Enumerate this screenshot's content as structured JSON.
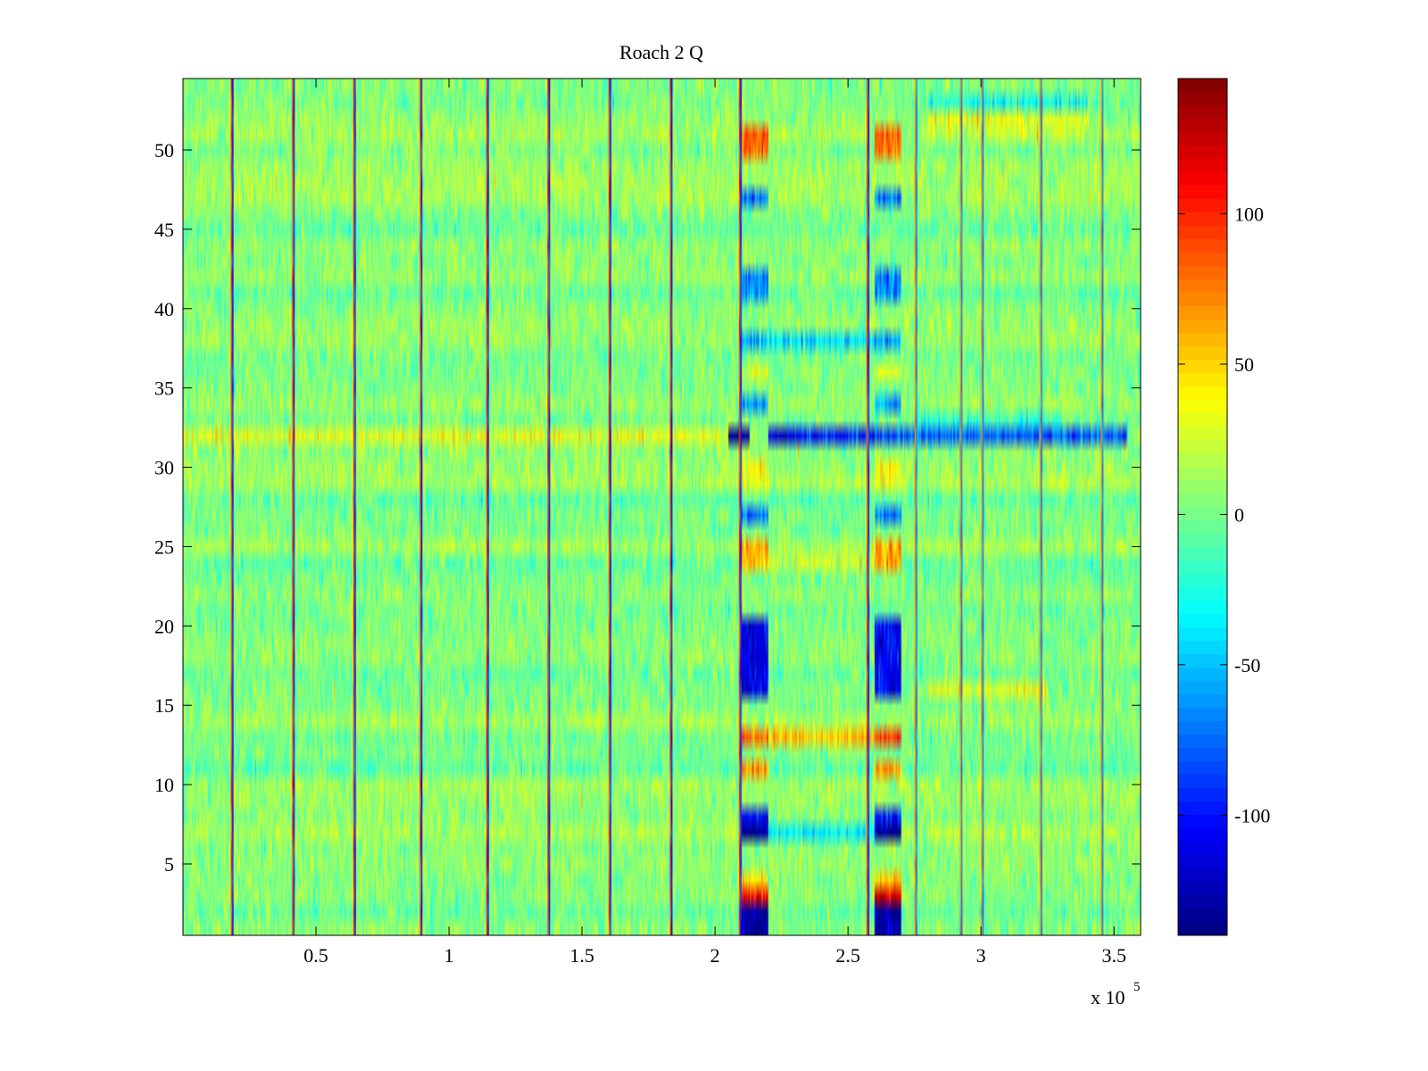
{
  "chart_data": {
    "type": "heatmap",
    "title": "Roach 2 Q",
    "xlabel": "",
    "ylabel": "",
    "x_exponent_label": "x 10",
    "x_exponent_power": "5",
    "xlim": [
      0,
      3.6
    ],
    "ylim": [
      0.5,
      54.5
    ],
    "x_ticks": [
      0.5,
      1,
      1.5,
      2,
      2.5,
      3,
      3.5
    ],
    "x_tick_labels": [
      "0.5",
      "1",
      "1.5",
      "2",
      "2.5",
      "3",
      "3.5"
    ],
    "y_ticks": [
      5,
      10,
      15,
      20,
      25,
      30,
      35,
      40,
      45,
      50
    ],
    "y_tick_labels": [
      "5",
      "10",
      "15",
      "20",
      "25",
      "30",
      "35",
      "40",
      "45",
      "50"
    ],
    "colorbar": {
      "colormap": "jet",
      "clim": [
        -140,
        145
      ],
      "ticks": [
        -100,
        -50,
        0,
        50,
        100
      ],
      "tick_labels": [
        "-100",
        "-50",
        "0",
        "50",
        "100"
      ]
    },
    "rows": 54,
    "background_value": 5,
    "vertical_stripes": [
      {
        "x": 0.18,
        "value": 110,
        "partner_value": -110
      },
      {
        "x": 0.41,
        "value": 110,
        "partner_value": -110
      },
      {
        "x": 0.64,
        "value": 110,
        "partner_value": -110
      },
      {
        "x": 0.89,
        "value": 110,
        "partner_value": -110
      },
      {
        "x": 1.14,
        "value": 110,
        "partner_value": -110
      },
      {
        "x": 1.37,
        "value": 110,
        "partner_value": -110
      },
      {
        "x": 1.6,
        "value": 110,
        "partner_value": -110
      },
      {
        "x": 1.83,
        "value": 110,
        "partner_value": -110
      },
      {
        "x": 2.09,
        "value": 110,
        "partner_value": -110
      },
      {
        "x": 2.57,
        "value": 110,
        "partner_value": -110
      },
      {
        "x": 2.75,
        "value": 80,
        "partner_value": -80
      },
      {
        "x": 2.92,
        "value": 80,
        "partner_value": -80
      },
      {
        "x": 3.0,
        "value": 80,
        "partner_value": -80
      },
      {
        "x": 3.22,
        "value": 80,
        "partner_value": -80
      },
      {
        "x": 3.45,
        "value": 80,
        "partner_value": -80
      }
    ],
    "anomaly_blocks": [
      {
        "x_range": [
          2.1,
          2.2
        ],
        "rows": [
          1,
          2
        ],
        "value": -130
      },
      {
        "x_range": [
          2.1,
          2.2
        ],
        "rows": [
          3
        ],
        "value": 110
      },
      {
        "x_range": [
          2.1,
          2.2
        ],
        "rows": [
          4
        ],
        "value": 45
      },
      {
        "x_range": [
          2.1,
          2.2
        ],
        "rows": [
          7
        ],
        "value": -140
      },
      {
        "x_range": [
          2.1,
          2.2
        ],
        "rows": [
          8
        ],
        "value": -100
      },
      {
        "x_range": [
          2.1,
          2.2
        ],
        "rows": [
          11
        ],
        "value": 70
      },
      {
        "x_range": [
          2.1,
          2.2
        ],
        "rows": [
          13
        ],
        "value": 80
      },
      {
        "x_range": [
          2.1,
          2.2
        ],
        "rows": [
          16,
          17,
          18,
          19,
          20
        ],
        "value": -110
      },
      {
        "x_range": [
          2.1,
          2.2
        ],
        "rows": [
          24,
          25
        ],
        "value": 55
      },
      {
        "x_range": [
          2.1,
          2.2
        ],
        "rows": [
          27
        ],
        "value": -75
      },
      {
        "x_range": [
          2.1,
          2.2
        ],
        "rows": [
          29,
          30
        ],
        "value": 35
      },
      {
        "x_range": [
          2.1,
          2.2
        ],
        "rows": [
          34
        ],
        "value": -60
      },
      {
        "x_range": [
          2.1,
          2.2
        ],
        "rows": [
          36
        ],
        "value": 30
      },
      {
        "x_range": [
          2.1,
          2.2
        ],
        "rows": [
          38
        ],
        "value": -55
      },
      {
        "x_range": [
          2.1,
          2.2
        ],
        "rows": [
          41,
          42
        ],
        "value": -65
      },
      {
        "x_range": [
          2.1,
          2.2
        ],
        "rows": [
          47
        ],
        "value": -75
      },
      {
        "x_range": [
          2.1,
          2.2
        ],
        "rows": [
          50,
          51
        ],
        "value": 80
      },
      {
        "x_range": [
          2.6,
          2.7
        ],
        "rows": [
          1,
          2
        ],
        "value": -130
      },
      {
        "x_range": [
          2.6,
          2.7
        ],
        "rows": [
          3
        ],
        "value": 120
      },
      {
        "x_range": [
          2.6,
          2.7
        ],
        "rows": [
          4
        ],
        "value": 55
      },
      {
        "x_range": [
          2.6,
          2.7
        ],
        "rows": [
          7
        ],
        "value": -140
      },
      {
        "x_range": [
          2.6,
          2.7
        ],
        "rows": [
          8
        ],
        "value": -100
      },
      {
        "x_range": [
          2.6,
          2.7
        ],
        "rows": [
          11
        ],
        "value": 70
      },
      {
        "x_range": [
          2.6,
          2.7
        ],
        "rows": [
          13
        ],
        "value": 85
      },
      {
        "x_range": [
          2.6,
          2.7
        ],
        "rows": [
          16,
          17,
          18,
          19,
          20
        ],
        "value": -110
      },
      {
        "x_range": [
          2.6,
          2.7
        ],
        "rows": [
          24,
          25
        ],
        "value": 60
      },
      {
        "x_range": [
          2.6,
          2.7
        ],
        "rows": [
          27
        ],
        "value": -75
      },
      {
        "x_range": [
          2.6,
          2.7
        ],
        "rows": [
          29,
          30
        ],
        "value": 35
      },
      {
        "x_range": [
          2.6,
          2.7
        ],
        "rows": [
          34
        ],
        "value": -60
      },
      {
        "x_range": [
          2.6,
          2.7
        ],
        "rows": [
          36
        ],
        "value": 30
      },
      {
        "x_range": [
          2.6,
          2.7
        ],
        "rows": [
          38
        ],
        "value": -55
      },
      {
        "x_range": [
          2.6,
          2.7
        ],
        "rows": [
          41,
          42
        ],
        "value": -65
      },
      {
        "x_range": [
          2.6,
          2.7
        ],
        "rows": [
          47
        ],
        "value": -75
      },
      {
        "x_range": [
          2.6,
          2.7
        ],
        "rows": [
          50,
          51
        ],
        "value": 80
      },
      {
        "x_range": [
          2.2,
          2.6
        ],
        "rows": [
          13
        ],
        "value": 55
      },
      {
        "x_range": [
          2.2,
          2.6
        ],
        "rows": [
          7
        ],
        "value": -35
      },
      {
        "x_range": [
          2.2,
          2.6
        ],
        "rows": [
          24
        ],
        "value": 25
      },
      {
        "x_range": [
          2.2,
          2.6
        ],
        "rows": [
          38
        ],
        "value": -40
      },
      {
        "x_range": [
          2.05,
          2.13
        ],
        "rows": [
          32
        ],
        "value": -140
      },
      {
        "x_range": [
          2.2,
          2.3
        ],
        "rows": [
          32
        ],
        "value": -110
      },
      {
        "x_range": [
          2.3,
          2.6
        ],
        "rows": [
          32
        ],
        "value": -100
      },
      {
        "x_range": [
          2.6,
          3.55
        ],
        "rows": [
          32
        ],
        "value": -80
      },
      {
        "x_range": [
          0.0,
          2.05
        ],
        "rows": [
          32
        ],
        "value": 30
      },
      {
        "x_range": [
          2.8,
          3.4
        ],
        "rows": [
          52
        ],
        "value": 30
      },
      {
        "x_range": [
          2.8,
          3.4
        ],
        "rows": [
          51
        ],
        "value": 20
      },
      {
        "x_range": [
          2.8,
          3.4
        ],
        "rows": [
          53
        ],
        "value": -30
      },
      {
        "x_range": [
          2.8,
          3.25
        ],
        "rows": [
          16
        ],
        "value": 30
      },
      {
        "x_range": [
          2.75,
          3.3
        ],
        "rows": [
          33
        ],
        "value": -15
      }
    ]
  }
}
